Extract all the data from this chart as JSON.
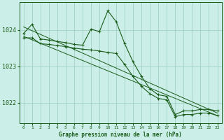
{
  "title": "Graphe pression niveau de la mer (hPa)",
  "background_color": "#cceee8",
  "grid_color": "#99ccbb",
  "line_color": "#1a5c1a",
  "text_color": "#1a5c1a",
  "xlim": [
    -0.5,
    23.5
  ],
  "ylim": [
    1021.45,
    1024.75
  ],
  "yticks": [
    1022,
    1023,
    1024
  ],
  "xticks": [
    0,
    1,
    2,
    3,
    4,
    5,
    6,
    7,
    8,
    9,
    10,
    11,
    12,
    13,
    14,
    15,
    16,
    17,
    18,
    19,
    20,
    21,
    22,
    23
  ],
  "series_upper": {
    "x": [
      0,
      1,
      2,
      3,
      4,
      5,
      6,
      7,
      8,
      9,
      10,
      11,
      12,
      13,
      14,
      15,
      16,
      17,
      18,
      19,
      20,
      21,
      22,
      23
    ],
    "y": [
      1023.9,
      1024.15,
      1023.75,
      1023.72,
      1023.68,
      1023.65,
      1023.6,
      1023.58,
      1024.02,
      1023.95,
      1024.52,
      1024.22,
      1023.62,
      1023.12,
      1022.72,
      1022.38,
      1022.22,
      1022.18,
      1021.68,
      1021.78,
      1021.78,
      1021.82,
      1021.82,
      1021.78
    ]
  },
  "series_lower": {
    "x": [
      0,
      1,
      2,
      3,
      4,
      5,
      6,
      7,
      8,
      9,
      10,
      11,
      12,
      13,
      14,
      15,
      16,
      17,
      18,
      19,
      20,
      21,
      22,
      23
    ],
    "y": [
      1023.78,
      1023.78,
      1023.62,
      1023.6,
      1023.57,
      1023.54,
      1023.5,
      1023.47,
      1023.45,
      1023.42,
      1023.38,
      1023.35,
      1023.05,
      1022.72,
      1022.45,
      1022.25,
      1022.12,
      1022.08,
      1021.62,
      1021.68,
      1021.68,
      1021.72,
      1021.72,
      1021.65
    ]
  },
  "trend1": {
    "x": [
      0,
      23
    ],
    "y": [
      1024.08,
      1021.72
    ]
  },
  "trend2": {
    "x": [
      0,
      23
    ],
    "y": [
      1023.82,
      1021.65
    ]
  }
}
